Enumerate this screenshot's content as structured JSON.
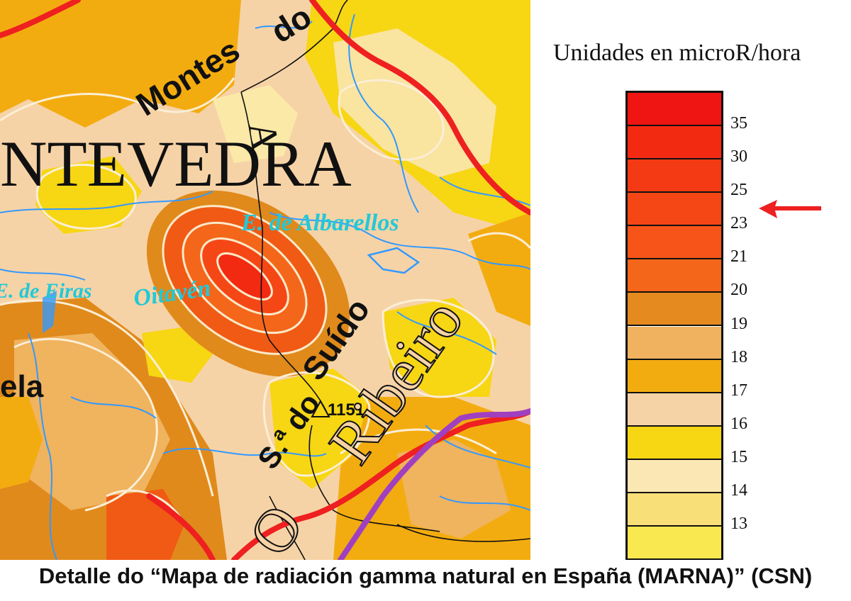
{
  "map": {
    "labels": {
      "province": "NTEVEDRA",
      "mountains_top": "Montes",
      "mountains_top2": "do",
      "reservoir_albarellos": "E. de Albarellos",
      "reservoir_eiras": "E. de Eiras",
      "peak": "Oitavén",
      "suido": "Suído",
      "sierra": "S.ª do",
      "elevation": "1151",
      "city_fragment": "ela",
      "region_ribeiro": "Ribeiro",
      "region_o": "O",
      "right_edge_text": "A"
    },
    "colors": {
      "yellow_light": "#fbe9a8",
      "yellow": "#f7d61c",
      "peach": "#f6d3a6",
      "orange_light": "#f0b35e",
      "orange": "#f3a30f",
      "brown_orange": "#e08a1c",
      "red_orange": "#f05a14",
      "red": "#ee1d10",
      "river": "#3399ff",
      "border_red": "#ee2020",
      "border_purple": "#a040c0",
      "road": "#111111",
      "label_cyan": "#22c8d8"
    }
  },
  "legend": {
    "title": "Unidades en  microR/hora",
    "ticks": [
      "35",
      "30",
      "25",
      "23",
      "21",
      "20",
      "19",
      "18",
      "17",
      "16",
      "15",
      "14",
      "13"
    ],
    "swatch_colors": [
      "#ee1512",
      "#f32a12",
      "#f33a14",
      "#f54716",
      "#f65418",
      "#f4661a",
      "#e58a1e",
      "#f0b25e",
      "#f3ac10",
      "#f6d3a6",
      "#f7d614",
      "#fbe7b4",
      "#f9df78",
      "#f9e850"
    ],
    "arrow_color": "#ee2020"
  },
  "caption": "Detalle do “Mapa de radiación gamma natural en España (MARNA)” (CSN)"
}
